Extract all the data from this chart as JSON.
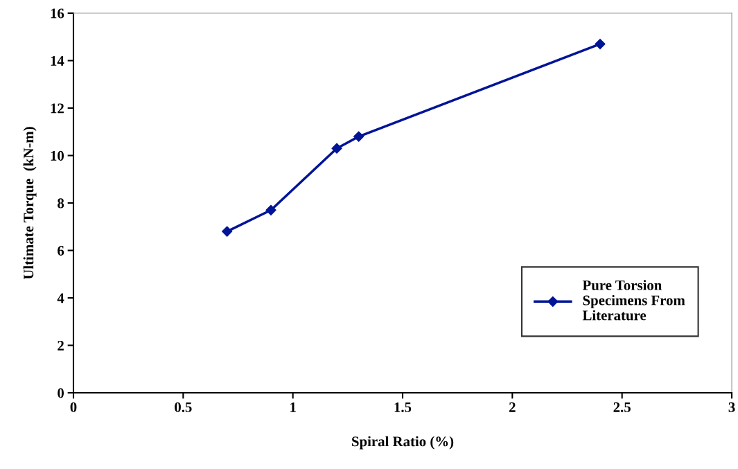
{
  "chart_data": {
    "type": "line",
    "xlabel": "Spiral Ratio (%)",
    "ylabel": "Ultimate Torque  (kN-m)",
    "x": [
      0.7,
      0.9,
      1.2,
      1.3,
      2.4
    ],
    "series": [
      {
        "name": "Pure Torsion\nSpecimens From\nLiterature",
        "color": "#001496",
        "values": [
          6.8,
          7.7,
          10.3,
          10.8,
          14.7
        ]
      }
    ],
    "xlim": [
      0,
      3
    ],
    "xticks": [
      0,
      0.5,
      1,
      1.5,
      2,
      2.5,
      3
    ],
    "ylim": [
      0,
      16
    ],
    "yticks": [
      0,
      2,
      4,
      6,
      8,
      10,
      12,
      14,
      16
    ],
    "grid": false,
    "legend": "bottom right",
    "marker": "diamond",
    "line_style": "solid"
  }
}
